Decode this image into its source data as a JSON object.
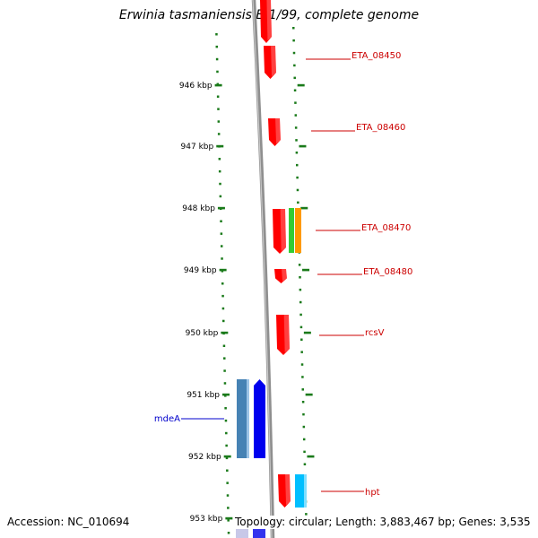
{
  "title": "Erwinia tasmaniensis Et1/99, complete genome",
  "footer": {
    "accession": "Accession: NC_010694",
    "summary": "Topology: circular; Length: 3,883,467 bp; Genes: 3,535"
  },
  "ticks": [
    {
      "label": "946 kbp"
    },
    {
      "label": "947 kbp"
    },
    {
      "label": "948 kbp"
    },
    {
      "label": "949 kbp"
    },
    {
      "label": "950 kbp"
    },
    {
      "label": "951 kbp"
    },
    {
      "label": "952 kbp"
    },
    {
      "label": "953 kbp"
    }
  ],
  "genes": [
    {
      "label": "ETA_08450",
      "color": "#e00000",
      "strand": "forward"
    },
    {
      "label": "ETA_08460",
      "color": "#e00000",
      "strand": "forward"
    },
    {
      "label": "ETA_08470",
      "color": "#e00000",
      "strand": "forward"
    },
    {
      "label": "ETA_08480",
      "color": "#e00000",
      "strand": "forward"
    },
    {
      "label": "rcsV",
      "color": "#e00000",
      "strand": "forward"
    },
    {
      "label": "mdeA",
      "color": "#0000c8",
      "strand": "reverse"
    },
    {
      "label": "hpt",
      "color": "#e00000",
      "strand": "forward"
    }
  ],
  "colors": {
    "forward_gene": "#ff0000",
    "reverse_gene": "#0000ee",
    "reverse_feature": "#4682b4",
    "green_feature": "#33cc33",
    "orange_feature": "#ff9900",
    "cyan_feature": "#00bfff",
    "backbone": "#808080",
    "ruler": "#1a7a1a",
    "forward_label": "#cc0000",
    "reverse_label": "#0000cc"
  }
}
